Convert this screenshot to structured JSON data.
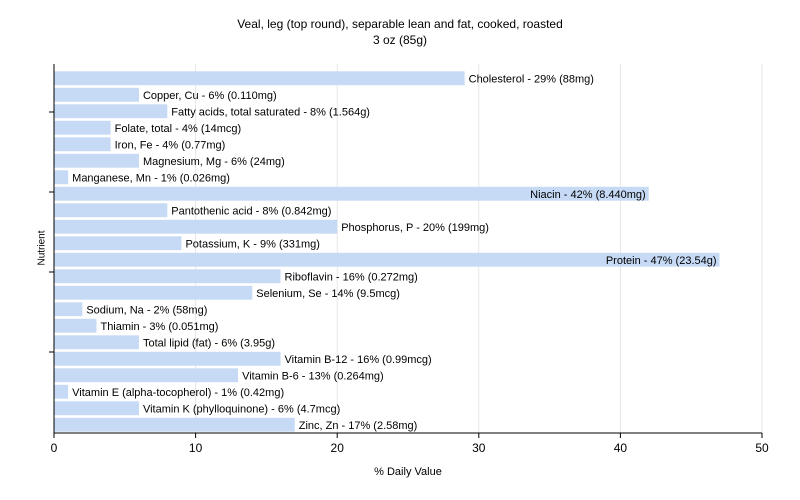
{
  "chart_data": {
    "type": "bar",
    "orientation": "horizontal",
    "title": "Veal, leg (top round), separable lean and fat, cooked, roasted",
    "subtitle": "3 oz (85g)",
    "xlabel": "% Daily Value",
    "ylabel": "Nutrient",
    "xlim": [
      0,
      50
    ],
    "xticks": [
      0,
      10,
      20,
      30,
      40,
      50
    ],
    "grid": true,
    "bar_color": "#c6daf5",
    "grid_color": "#e6e6e6",
    "categories": [
      "Cholesterol",
      "Copper, Cu",
      "Fatty acids, total saturated",
      "Folate, total",
      "Iron, Fe",
      "Magnesium, Mg",
      "Manganese, Mn",
      "Niacin",
      "Pantothenic acid",
      "Phosphorus, P",
      "Potassium, K",
      "Protein",
      "Riboflavin",
      "Selenium, Se",
      "Sodium, Na",
      "Thiamin",
      "Total lipid (fat)",
      "Vitamin B-12",
      "Vitamin B-6",
      "Vitamin E (alpha-tocopherol)",
      "Vitamin K (phylloquinone)",
      "Zinc, Zn"
    ],
    "values": [
      29,
      6,
      8,
      4,
      4,
      6,
      1,
      42,
      8,
      20,
      9,
      47,
      16,
      14,
      2,
      3,
      6,
      16,
      13,
      1,
      6,
      17
    ],
    "data_labels": [
      "Cholesterol - 29% (88mg)",
      "Copper, Cu - 6% (0.110mg)",
      "Fatty acids, total saturated - 8% (1.564g)",
      "Folate, total - 4% (14mcg)",
      "Iron, Fe - 4% (0.77mg)",
      "Magnesium, Mg - 6% (24mg)",
      "Manganese, Mn - 1% (0.026mg)",
      "Niacin - 42% (8.440mg)",
      "Pantothenic acid - 8% (0.842mg)",
      "Phosphorus, P - 20% (199mg)",
      "Potassium, K - 9% (331mg)",
      "Protein - 47% (23.54g)",
      "Riboflavin - 16% (0.272mg)",
      "Selenium, Se - 14% (9.5mcg)",
      "Sodium, Na - 2% (58mg)",
      "Thiamin - 3% (0.051mg)",
      "Total lipid (fat) - 6% (3.95g)",
      "Vitamin B-12 - 16% (0.99mcg)",
      "Vitamin B-6 - 13% (0.264mg)",
      "Vitamin E (alpha-tocopherol) - 1% (0.42mg)",
      "Vitamin K (phylloquinone) - 6% (4.7mcg)",
      "Zinc, Zn - 17% (2.58mg)"
    ]
  }
}
